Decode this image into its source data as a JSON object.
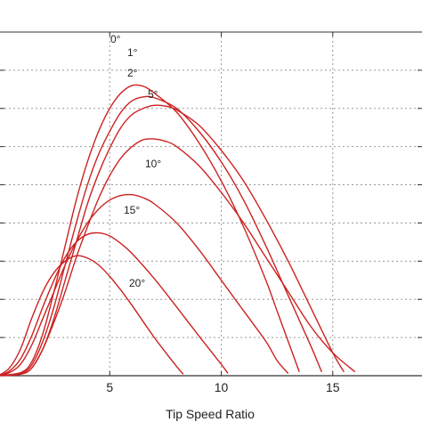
{
  "chart_data": {
    "type": "line",
    "title": "",
    "xlabel": "Tip Speed Ratio",
    "ylabel": "",
    "xlim": [
      0,
      19
    ],
    "ylim": [
      0,
      0.45
    ],
    "grid": true,
    "x_ticks": [
      5,
      10,
      15
    ],
    "x_tick_labels": [
      "5",
      "10",
      "15"
    ],
    "y_ticks": [
      0.05,
      0.1,
      0.15,
      0.2,
      0.25,
      0.3,
      0.35,
      0.4
    ],
    "colors": {
      "curve": "#cc2222",
      "grid": "#999999",
      "axis": "#333333"
    },
    "series": [
      {
        "label": "0°",
        "values": [
          [
            0,
            0
          ],
          [
            1,
            0.004
          ],
          [
            1.5,
            0.018
          ],
          [
            2,
            0.055
          ],
          [
            2.5,
            0.11
          ],
          [
            3,
            0.17
          ],
          [
            3.5,
            0.23
          ],
          [
            4,
            0.28
          ],
          [
            4.5,
            0.32
          ],
          [
            5,
            0.35
          ],
          [
            5.5,
            0.37
          ],
          [
            6,
            0.38
          ],
          [
            6.5,
            0.379
          ],
          [
            7,
            0.37
          ],
          [
            8,
            0.345
          ],
          [
            9,
            0.305
          ],
          [
            10,
            0.255
          ],
          [
            11,
            0.195
          ],
          [
            12,
            0.125
          ],
          [
            12.5,
            0.085
          ],
          [
            13,
            0.045
          ],
          [
            13.5,
            0.005
          ]
        ]
      },
      {
        "label": "1°",
        "values": [
          [
            0,
            0
          ],
          [
            1,
            0.003
          ],
          [
            1.5,
            0.014
          ],
          [
            2,
            0.045
          ],
          [
            2.5,
            0.09
          ],
          [
            3,
            0.145
          ],
          [
            3.5,
            0.2
          ],
          [
            4,
            0.25
          ],
          [
            4.5,
            0.29
          ],
          [
            5,
            0.32
          ],
          [
            5.5,
            0.345
          ],
          [
            6,
            0.36
          ],
          [
            6.5,
            0.365
          ],
          [
            7,
            0.364
          ],
          [
            8,
            0.35
          ],
          [
            9,
            0.32
          ],
          [
            10,
            0.28
          ],
          [
            11,
            0.23
          ],
          [
            12,
            0.17
          ],
          [
            13,
            0.105
          ],
          [
            14,
            0.04
          ],
          [
            14.5,
            0.005
          ]
        ]
      },
      {
        "label": "2°",
        "values": [
          [
            0,
            0
          ],
          [
            1,
            0.002
          ],
          [
            1.5,
            0.01
          ],
          [
            2,
            0.035
          ],
          [
            2.5,
            0.075
          ],
          [
            3,
            0.125
          ],
          [
            3.5,
            0.175
          ],
          [
            4,
            0.225
          ],
          [
            4.5,
            0.265
          ],
          [
            5,
            0.298
          ],
          [
            5.5,
            0.325
          ],
          [
            6,
            0.342
          ],
          [
            6.5,
            0.35
          ],
          [
            7,
            0.354
          ],
          [
            7.5,
            0.353
          ],
          [
            8,
            0.348
          ],
          [
            9,
            0.328
          ],
          [
            10,
            0.295
          ],
          [
            11,
            0.255
          ],
          [
            12,
            0.205
          ],
          [
            13,
            0.15
          ],
          [
            14,
            0.09
          ],
          [
            15,
            0.03
          ],
          [
            15.5,
            0.005
          ]
        ]
      },
      {
        "label": "5°",
        "values": [
          [
            0,
            0
          ],
          [
            1,
            0.002
          ],
          [
            1.5,
            0.01
          ],
          [
            2,
            0.035
          ],
          [
            2.5,
            0.07
          ],
          [
            3,
            0.11
          ],
          [
            3.5,
            0.155
          ],
          [
            4,
            0.195
          ],
          [
            4.5,
            0.232
          ],
          [
            5,
            0.262
          ],
          [
            5.5,
            0.285
          ],
          [
            6,
            0.3
          ],
          [
            6.5,
            0.309
          ],
          [
            7,
            0.31
          ],
          [
            7.5,
            0.307
          ],
          [
            8,
            0.3
          ],
          [
            9,
            0.275
          ],
          [
            10,
            0.24
          ],
          [
            11,
            0.2
          ],
          [
            12,
            0.155
          ],
          [
            13,
            0.11
          ],
          [
            14,
            0.065
          ],
          [
            15,
            0.03
          ],
          [
            16,
            0.005
          ]
        ]
      },
      {
        "label": "10°",
        "values": [
          [
            0,
            0
          ],
          [
            0.5,
            0.004
          ],
          [
            1,
            0.015
          ],
          [
            1.5,
            0.04
          ],
          [
            2,
            0.075
          ],
          [
            2.5,
            0.11
          ],
          [
            3,
            0.145
          ],
          [
            3.5,
            0.175
          ],
          [
            4,
            0.2
          ],
          [
            4.5,
            0.218
          ],
          [
            5,
            0.23
          ],
          [
            5.5,
            0.236
          ],
          [
            6,
            0.237
          ],
          [
            6.5,
            0.233
          ],
          [
            7,
            0.225
          ],
          [
            8,
            0.2
          ],
          [
            9,
            0.165
          ],
          [
            10,
            0.125
          ],
          [
            11,
            0.085
          ],
          [
            12,
            0.045
          ],
          [
            12.5,
            0.02
          ],
          [
            13,
            0.003
          ]
        ]
      },
      {
        "label": "15°",
        "values": [
          [
            0,
            0
          ],
          [
            0.5,
            0.006
          ],
          [
            1,
            0.022
          ],
          [
            1.5,
            0.052
          ],
          [
            2,
            0.09
          ],
          [
            2.5,
            0.125
          ],
          [
            3,
            0.155
          ],
          [
            3.5,
            0.175
          ],
          [
            4,
            0.185
          ],
          [
            4.5,
            0.187
          ],
          [
            5,
            0.183
          ],
          [
            5.5,
            0.173
          ],
          [
            6,
            0.16
          ],
          [
            7,
            0.127
          ],
          [
            8,
            0.09
          ],
          [
            9,
            0.052
          ],
          [
            10,
            0.015
          ],
          [
            10.3,
            0.003
          ]
        ]
      },
      {
        "label": "20°",
        "values": [
          [
            0,
            0
          ],
          [
            0.5,
            0.01
          ],
          [
            1,
            0.035
          ],
          [
            1.5,
            0.075
          ],
          [
            2,
            0.11
          ],
          [
            2.5,
            0.135
          ],
          [
            3,
            0.15
          ],
          [
            3.5,
            0.157
          ],
          [
            4,
            0.154
          ],
          [
            4.5,
            0.145
          ],
          [
            5,
            0.13
          ],
          [
            5.5,
            0.112
          ],
          [
            6,
            0.092
          ],
          [
            7,
            0.05
          ],
          [
            8,
            0.012
          ],
          [
            8.3,
            0.002
          ]
        ]
      }
    ]
  }
}
